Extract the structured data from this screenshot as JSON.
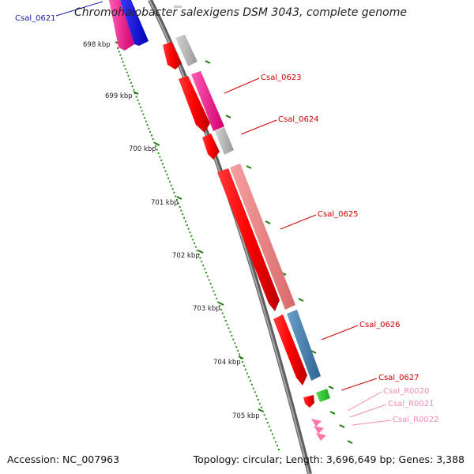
{
  "title": "Chromohalobacter salexigens DSM 3043, complete genome",
  "accession_text": "Accession: NC_007963",
  "summary_text": "Topology: circular; Length: 3,696,649 bp; Genes: 3,388",
  "ticks": [
    "698 kbp",
    "699 kbp",
    "700 kbp",
    "701 kbp",
    "702 kbp",
    "703 kbp",
    "704 kbp",
    "705 kbp"
  ],
  "gene_labels": [
    {
      "text": "Csal_0621",
      "color": "#1a1aa8"
    },
    {
      "text": "Csal_0623",
      "color": "#cc0000"
    },
    {
      "text": "Csal_0624",
      "color": "#cc0000"
    },
    {
      "text": "Csal_0625",
      "color": "#cc0000"
    },
    {
      "text": "Csal_0626",
      "color": "#cc0000"
    },
    {
      "text": "Csal_0627",
      "color": "#cc0000"
    },
    {
      "text": "Csal_R0020",
      "color": "#f28cb4"
    },
    {
      "text": "Csal_R0021",
      "color": "#f28cb4"
    },
    {
      "text": "Csal_R0022",
      "color": "#f28cb4"
    }
  ],
  "colors": {
    "backbone": "#7f7f7f",
    "cds_strand": "#ff0000",
    "tick_dots": "#2a8a1a",
    "cog_magenta": "#ff1493",
    "cog_blue": "#0000ff",
    "cog_grey": "#b3b3b3",
    "cog_salmon": "#f08080",
    "cog_steel": "#4682b4",
    "cog_green": "#2ecc2e",
    "rna_pink": "#ff77aa"
  }
}
